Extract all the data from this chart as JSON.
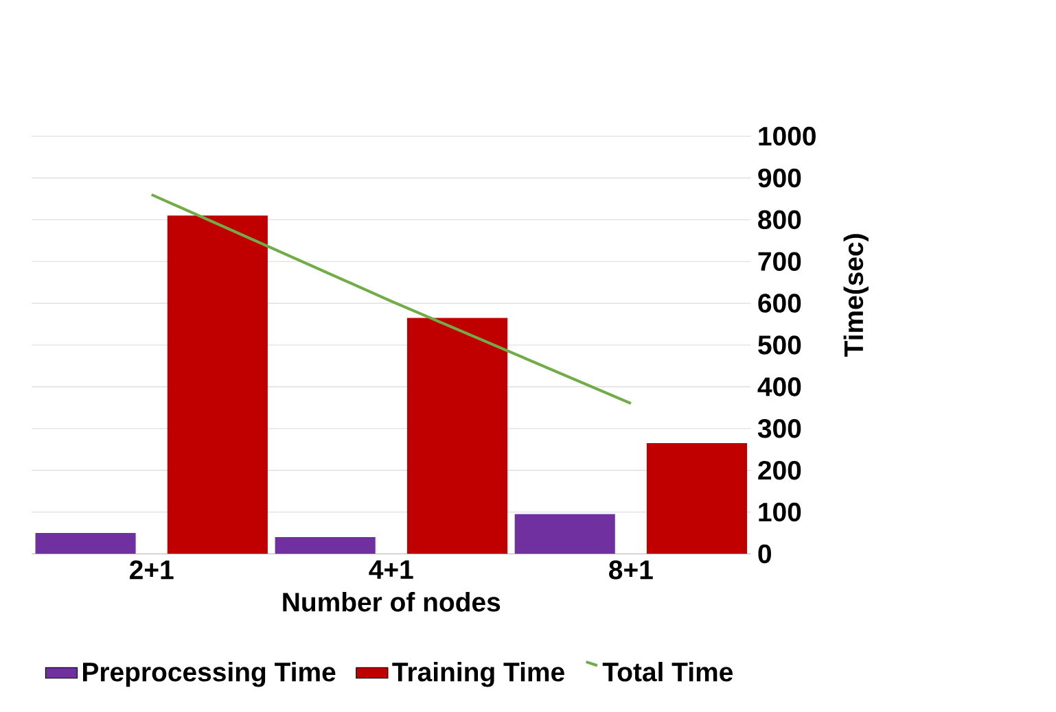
{
  "chart_data": {
    "type": "bar",
    "xlabel": "Number of nodes",
    "ylabel": "Time(sec)",
    "categories": [
      "2+1",
      "4+1",
      "8+1"
    ],
    "series": [
      {
        "name": "Preprocessing Time",
        "color": "#7030a0",
        "values": [
          50,
          40,
          95
        ]
      },
      {
        "name": "Training Time",
        "color": "#c00000",
        "values": [
          810,
          565,
          265
        ]
      },
      {
        "name": "Total Time",
        "type": "line",
        "color": "#70ad47",
        "values": [
          860,
          605,
          360
        ]
      }
    ],
    "ylim": [
      0,
      1000
    ],
    "yticks": [
      0,
      100,
      200,
      300,
      400,
      500,
      600,
      700,
      800,
      900,
      1000
    ],
    "grid": "y",
    "legend": "bottom",
    "marker": "none"
  }
}
